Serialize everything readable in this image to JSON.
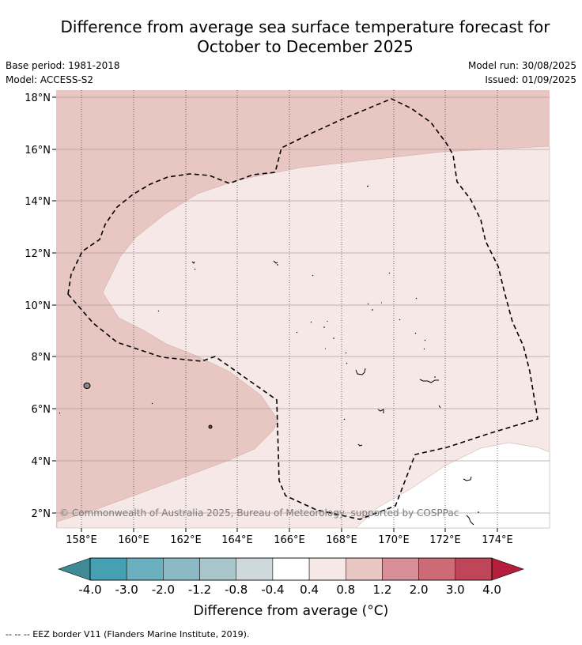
{
  "title": {
    "line1": "Difference from average sea surface temperature forecast for",
    "line2": "October to December 2025"
  },
  "meta": {
    "base_period": "Base period: 1981-2018",
    "model": "Model: ACCESS-S2",
    "model_run": "Model run: 30/08/2025",
    "issued": "Issued: 01/09/2025"
  },
  "map": {
    "lon_ticks": [
      "158°E",
      "160°E",
      "162°E",
      "164°E",
      "166°E",
      "168°E",
      "170°E",
      "172°E",
      "174°E"
    ],
    "lat_ticks": [
      "18°N",
      "16°N",
      "14°N",
      "12°N",
      "10°N",
      "8°N",
      "6°N",
      "4°N",
      "2°N"
    ],
    "copyright": "© Commonwealth of Australia 2025, Bureau of Meteorology, supported by COSPPac",
    "fill_colors": {
      "band_0p8_1p2": "#e8c6c2",
      "band_0p4_0p8": "#f5e8e7",
      "land_or_neutral": "#ffffff"
    }
  },
  "colorbar": {
    "labels": [
      "-4.0",
      "-3.0",
      "-2.0",
      "-1.2",
      "-0.8",
      "-0.4",
      "0.4",
      "0.8",
      "1.2",
      "2.0",
      "3.0",
      "4.0"
    ],
    "colors": [
      "#46a0b4",
      "#6ab0be",
      "#8cbac4",
      "#a9c7cb",
      "#cdd9da",
      "#ffffff",
      "#f5e8e7",
      "#e8c6c2",
      "#d98f98",
      "#cc6a76",
      "#be4658"
    ],
    "low_extend_color": "#3f8a95",
    "high_extend_color": "#b41e3c",
    "title": "Difference from average (°C)"
  },
  "footer": "-- -- -- EEZ border V11 (Flanders Marine Institute, 2019)."
}
